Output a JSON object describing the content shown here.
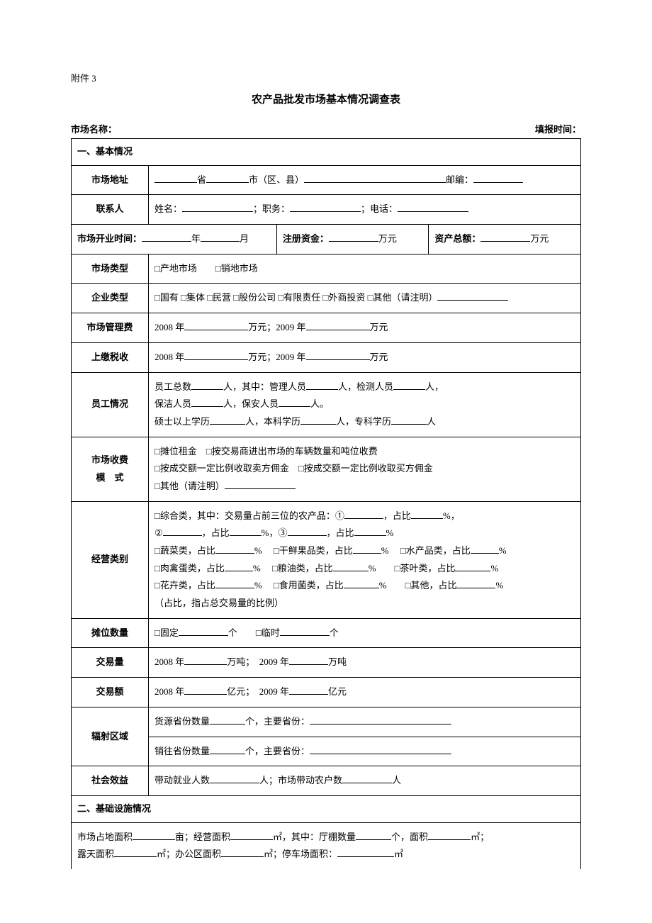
{
  "attachment": "附件 3",
  "title": "农产品批发市场基本情况调查表",
  "top": {
    "market_name_label": "市场名称：",
    "report_time_label": "填报时间："
  },
  "sec1": {
    "header": "一、基本情况",
    "address_label": "市场地址",
    "address_text": {
      "province": "省",
      "city": "市（区、县）",
      "postcode": "邮编："
    },
    "contact_label": "联系人",
    "contact_text": {
      "name": "姓名：",
      "position": "；职务：",
      "phone": "；电话："
    },
    "open_time_label": "市场开业时间：",
    "year_unit": "年",
    "month_unit": "月",
    "reg_cap_label": "注册资金：",
    "wan_yuan": "万元",
    "total_asset_label": "资产总额：",
    "market_type_label": "市场类型",
    "market_type_opts": "□产地市场　　□销地市场",
    "ent_type_label": "企业类型",
    "ent_type_opts": "□国有 □集体 □民营 □股份公司 □有限责任 □外商投资 □其他（请注明）",
    "mgmt_fee_label": "市场管理费",
    "tax_label": "上缴税收",
    "year_fee_a": "2008 年",
    "year_fee_b": "万元；2009 年",
    "year_fee_c": "万元",
    "staff_label": "员工情况",
    "staff_l1a": "员工总数",
    "staff_l1b": "人，其中：管理人员",
    "staff_l1c": "人，检测人员",
    "staff_l1d": "人，",
    "staff_l2a": "保洁人员",
    "staff_l2b": "人，保安人员",
    "staff_l2c": "人。",
    "staff_l3a": "硕士以上学历",
    "staff_l3b": "人，本科学历",
    "staff_l3c": "人，专科学历",
    "staff_l3d": "人",
    "fee_mode_label1": "市场收费",
    "fee_mode_label2": "模　式",
    "fee_mode_l1": "□摊位租金　□按交易商进出市场的车辆数量和吨位收费",
    "fee_mode_l2": "□按成交额一定比例收取卖方佣金　□按成交额一定比例收取买方佣金",
    "fee_mode_l3": "□其他（请注明）",
    "biz_label": "经营类别",
    "biz_l1a": "□综合类，其中：交易量占前三位的农产品：①",
    "biz_l1b": "，占比",
    "pct": "%，",
    "biz_l2a": "②",
    "biz_l2b": "，占比",
    "biz_l2c": "%，③",
    "biz_l2d": "，占比",
    "pct_end": "%",
    "biz_l3a": "□蔬菜类，占比",
    "biz_l3b": "%　 □干鲜果品类，占比",
    "biz_l3c": "%　 □水产品类，占比",
    "biz_l4a": "□肉禽蛋类，占比",
    "biz_l4b": "%　 □粮油类，占比",
    "biz_l4c": "%　　□茶叶类，占比",
    "biz_l5a": "□花卉类，占比",
    "biz_l5b": "%　 □食用菌类，占比",
    "biz_l5c": "%　　□其他，占比",
    "biz_l6": "（占比，指占总交易量的比例）",
    "booth_label": "摊位数量",
    "booth_a": "□固定",
    "booth_b": "个　　□临时",
    "booth_c": "个",
    "vol_label": "交易量",
    "vol_a": "2008 年",
    "vol_b": "万吨；　2009 年",
    "vol_c": "万吨",
    "amt_label": "交易额",
    "amt_a": "2008 年",
    "amt_b": "亿元；　2009 年",
    "amt_c": "亿元",
    "area_label": "辐射区域",
    "area_l1a": "货源省份数量",
    "area_l1b": "个，主要省份：",
    "area_l2a": "销往省份数量",
    "area_l2b": "个，主要省份：",
    "social_label": "社会效益",
    "social_a": "带动就业人数",
    "social_b": "人；市场带动农户数",
    "social_c": "人"
  },
  "sec2": {
    "header": "二、基础设施情况",
    "l1a": "市场占地面积",
    "l1b": "亩；经营面积",
    "l1c": "㎡，其中：厅棚数量",
    "l1d": "个，面积",
    "l1e": "㎡；",
    "l2a": "露天面积",
    "l2b": "㎡；办公区面积",
    "l2c": "㎡；停车场面积：",
    "l2d": "㎡"
  }
}
